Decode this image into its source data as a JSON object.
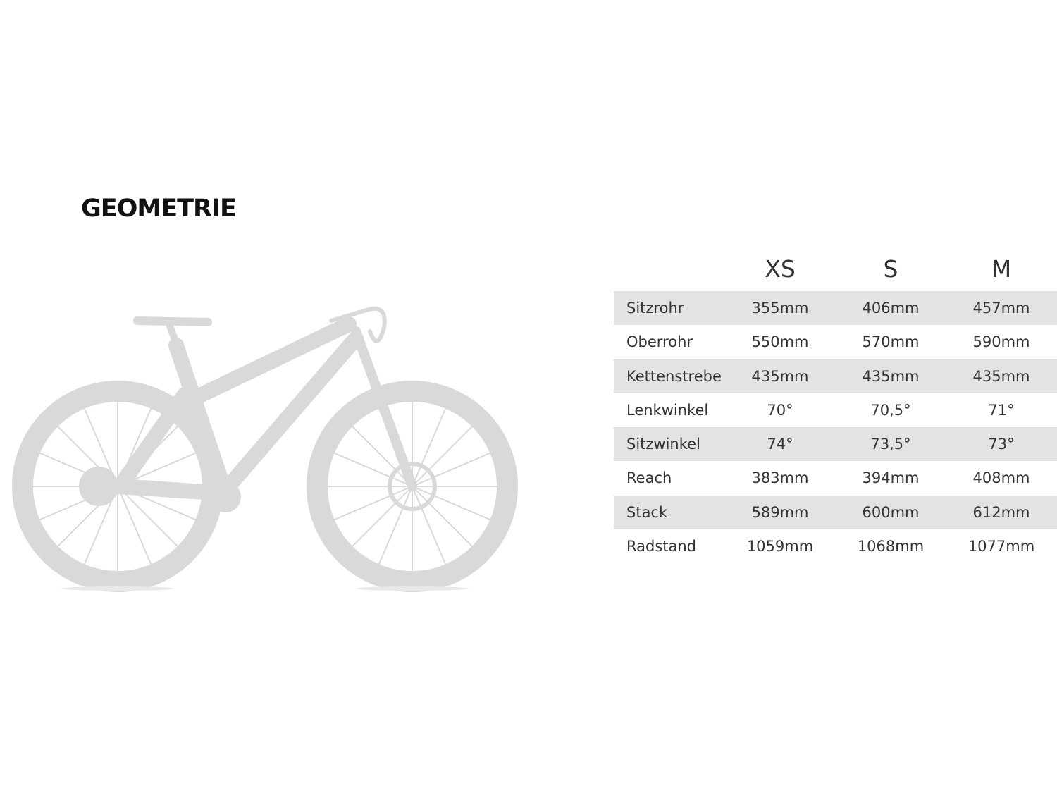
{
  "title": "GEOMETRIE",
  "bike_illustration": {
    "color": "#d9d9d9"
  },
  "table": {
    "sizes": [
      "XS",
      "S",
      "M"
    ],
    "rows": [
      {
        "label": "Sitzrohr",
        "values": [
          "355mm",
          "406mm",
          "457mm"
        ]
      },
      {
        "label": "Oberrohr",
        "values": [
          "550mm",
          "570mm",
          "590mm"
        ]
      },
      {
        "label": "Kettenstrebe",
        "values": [
          "435mm",
          "435mm",
          "435mm"
        ]
      },
      {
        "label": "Lenkwinkel",
        "values": [
          "70°",
          "70,5°",
          "71°"
        ]
      },
      {
        "label": "Sitzwinkel",
        "values": [
          "74°",
          "73,5°",
          "73°"
        ]
      },
      {
        "label": "Reach",
        "values": [
          "383mm",
          "394mm",
          "408mm"
        ]
      },
      {
        "label": "Stack",
        "values": [
          "589mm",
          "600mm",
          "612mm"
        ]
      },
      {
        "label": "Radstand",
        "values": [
          "1059mm",
          "1068mm",
          "1077mm"
        ]
      }
    ]
  }
}
